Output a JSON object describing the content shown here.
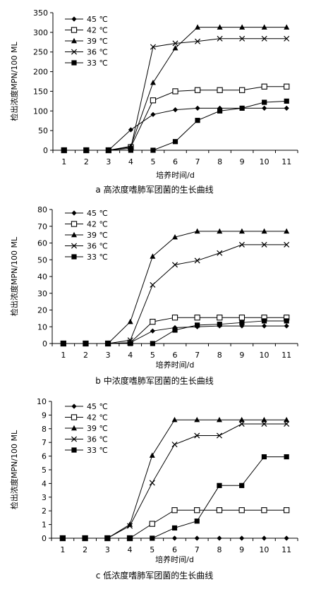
{
  "chart_data": [
    {
      "type": "line",
      "title": "a 高浓度嗜肺军团菌的生长曲线",
      "xlabel": "培养时间/d",
      "ylabel": "检出浓度MPN/100 ML",
      "x": [
        1,
        2,
        3,
        4,
        5,
        6,
        7,
        8,
        9,
        10,
        11
      ],
      "ylim": [
        0,
        350
      ],
      "yticks": [
        0,
        50,
        100,
        150,
        200,
        250,
        300,
        350
      ],
      "legend_position": "top-left",
      "series": [
        {
          "name": "45 ℃",
          "marker": "diamond-filled",
          "values": [
            0,
            0,
            0,
            52,
            91,
            103,
            107,
            107,
            107,
            107,
            107
          ]
        },
        {
          "name": "42 ℃",
          "marker": "square-open",
          "values": [
            0,
            0,
            0,
            8,
            127,
            150,
            153,
            153,
            153,
            162,
            162
          ]
        },
        {
          "name": "39 ℃",
          "marker": "triangle-filled",
          "values": [
            0,
            0,
            0,
            10,
            172,
            260,
            313,
            313,
            313,
            313,
            313
          ]
        },
        {
          "name": "36 ℃",
          "marker": "x",
          "values": [
            0,
            0,
            0,
            5,
            263,
            272,
            277,
            284,
            284,
            284,
            284
          ]
        },
        {
          "name": "33 ℃",
          "marker": "square-filled",
          "values": [
            0,
            0,
            0,
            0,
            0,
            22,
            76,
            100,
            107,
            122,
            125
          ]
        }
      ]
    },
    {
      "type": "line",
      "title": "b 中浓度嗜肺军团菌的生长曲线",
      "xlabel": "培养时间/d",
      "ylabel": "检出浓度MPN/100 ML",
      "x": [
        1,
        2,
        3,
        4,
        5,
        6,
        7,
        8,
        9,
        10,
        11
      ],
      "ylim": [
        0,
        80
      ],
      "yticks": [
        0,
        10,
        20,
        30,
        40,
        50,
        60,
        70,
        80
      ],
      "legend_position": "top-left",
      "series": [
        {
          "name": "45 ℃",
          "marker": "diamond-filled",
          "values": [
            0,
            0,
            0,
            0.5,
            7.5,
            9.5,
            10,
            10.5,
            10.5,
            10.5,
            10.5
          ]
        },
        {
          "name": "42 ℃",
          "marker": "square-open",
          "values": [
            0,
            0,
            0,
            0.5,
            13,
            15.5,
            15.5,
            15.5,
            15.5,
            15.5,
            15.5
          ]
        },
        {
          "name": "39 ℃",
          "marker": "triangle-filled",
          "values": [
            0,
            0,
            0,
            13,
            52,
            63.5,
            67,
            67,
            67,
            67,
            67
          ]
        },
        {
          "name": "36 ℃",
          "marker": "x",
          "values": [
            0,
            0,
            0,
            2,
            35,
            47,
            49.5,
            54,
            59,
            59,
            59
          ]
        },
        {
          "name": "33 ℃",
          "marker": "square-filled",
          "values": [
            0,
            0,
            0,
            0,
            0,
            8,
            11,
            11.5,
            12.5,
            13.5,
            13.5
          ]
        }
      ]
    },
    {
      "type": "line",
      "title": "c 低浓度嗜肺军团菌的生长曲线",
      "xlabel": "培养时间/d",
      "ylabel": "检出浓度MPN/100 ML",
      "x": [
        1,
        2,
        3,
        4,
        5,
        6,
        7,
        8,
        9,
        10,
        11
      ],
      "ylim": [
        0,
        10
      ],
      "yticks": [
        0,
        1,
        2,
        3,
        4,
        5,
        6,
        7,
        8,
        9,
        10
      ],
      "legend_position": "top-left",
      "series": [
        {
          "name": "45 ℃",
          "marker": "diamond-filled",
          "values": [
            0,
            0,
            0,
            0,
            0,
            0,
            0,
            0,
            0,
            0,
            0
          ]
        },
        {
          "name": "42 ℃",
          "marker": "square-open",
          "values": [
            0,
            0,
            0,
            0,
            1.05,
            2.05,
            2.05,
            2.05,
            2.05,
            2.05,
            2.05
          ]
        },
        {
          "name": "39 ℃",
          "marker": "triangle-filled",
          "values": [
            0,
            0,
            0,
            1,
            6.05,
            8.65,
            8.65,
            8.65,
            8.65,
            8.65,
            8.65
          ]
        },
        {
          "name": "36 ℃",
          "marker": "x",
          "values": [
            0,
            0,
            0,
            0.9,
            4.05,
            6.85,
            7.5,
            7.5,
            8.35,
            8.35,
            8.35
          ]
        },
        {
          "name": "33 ℃",
          "marker": "square-filled",
          "values": [
            0,
            0,
            0,
            0,
            0,
            0.75,
            1.25,
            3.85,
            3.85,
            5.95,
            5.95
          ]
        }
      ]
    }
  ]
}
